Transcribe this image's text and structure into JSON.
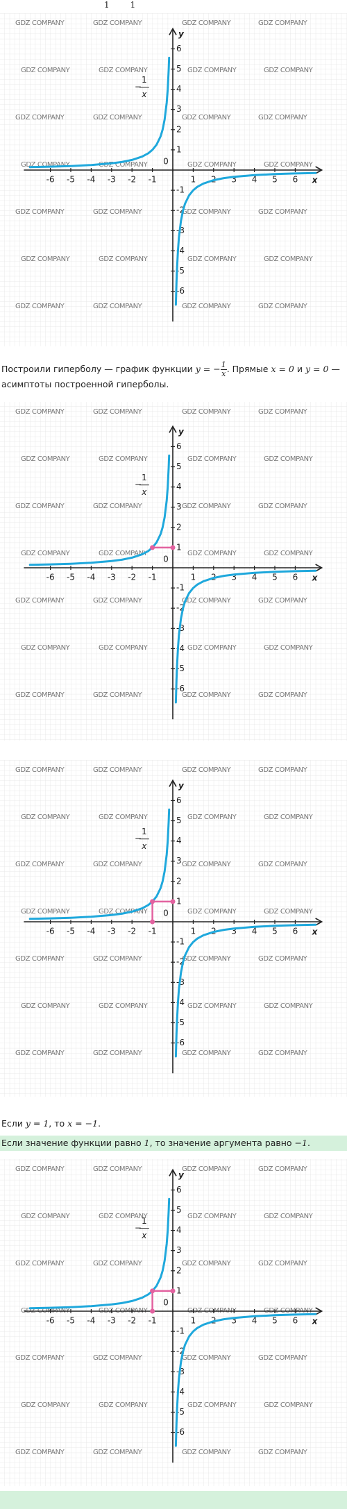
{
  "top_fragment": [
    "1",
    "1"
  ],
  "watermark": "GDZ COMPANY",
  "p1": {
    "before": "Построили гиперболу — график функции ",
    "lhs": "y = −",
    "num": "1",
    "den": "x",
    "middle": ". Прямые ",
    "eq1": "x = 0",
    "and": " и ",
    "eq2": "y = 0",
    "after": " — асимптоты построенной гиперболы."
  },
  "p2": {
    "before": "Если ",
    "eq1": "y = 1",
    "middle": ", то ",
    "eq2": "x = −1",
    "after": "."
  },
  "p3": {
    "before": "Если значение функции равно ",
    "eq1": "1",
    "middle": ", то значение аргумента равно ",
    "eq2": "−1",
    "after": "."
  },
  "chart_data": [
    {
      "type": "line",
      "xlabel": "x",
      "ylabel": "y",
      "color": "#1fa8dc",
      "annotation": {
        "sign": "−",
        "num": "1",
        "den": "x",
        "x": -1.4,
        "y": 4.1
      },
      "x": [
        -7,
        -6,
        -5,
        -4,
        -3,
        -2.5,
        -2,
        -1.5,
        -1.2,
        -1,
        -0.8,
        -0.6,
        -0.5,
        -0.4,
        -0.3,
        -0.25,
        -0.2,
        -0.18,
        null,
        0.15,
        0.18,
        0.2,
        0.25,
        0.3,
        0.4,
        0.5,
        0.6,
        0.8,
        1,
        1.2,
        1.5,
        2,
        2.5,
        3,
        4,
        5,
        6,
        7
      ],
      "values": [
        0.143,
        0.167,
        0.2,
        0.25,
        0.333,
        0.4,
        0.5,
        0.667,
        0.833,
        1,
        1.25,
        1.667,
        2,
        2.5,
        3.333,
        4,
        5,
        5.556,
        null,
        -6.667,
        -5.556,
        -5,
        -4,
        -3.333,
        -2.5,
        -2,
        -1.667,
        -1.25,
        -1,
        -0.833,
        -0.667,
        -0.5,
        -0.4,
        -0.333,
        -0.25,
        -0.2,
        -0.167,
        -0.143
      ],
      "xlim": [
        -7.3,
        7.3
      ],
      "ylim": [
        -7.5,
        7
      ],
      "xticks": [
        -6,
        -5,
        -4,
        -3,
        -2,
        -1,
        0,
        1,
        2,
        3,
        4,
        5,
        6
      ],
      "yticks": [
        -6,
        -5,
        -4,
        -3,
        -2,
        -1,
        1,
        2,
        3,
        4,
        5,
        6
      ]
    },
    {
      "type": "line",
      "xlabel": "x",
      "ylabel": "y",
      "color": "#1fa8dc",
      "annotation": {
        "sign": "−",
        "num": "1",
        "den": "x",
        "x": -1.4,
        "y": 4.1
      },
      "x": [
        -7,
        -6,
        -5,
        -4,
        -3,
        -2.5,
        -2,
        -1.5,
        -1.2,
        -1,
        -0.8,
        -0.6,
        -0.5,
        -0.4,
        -0.3,
        -0.25,
        -0.2,
        -0.18,
        null,
        0.15,
        0.18,
        0.2,
        0.25,
        0.3,
        0.4,
        0.5,
        0.6,
        0.8,
        1,
        1.2,
        1.5,
        2,
        2.5,
        3,
        4,
        5,
        6,
        7
      ],
      "values": [
        0.143,
        0.167,
        0.2,
        0.25,
        0.333,
        0.4,
        0.5,
        0.667,
        0.833,
        1,
        1.25,
        1.667,
        2,
        2.5,
        3.333,
        4,
        5,
        5.556,
        null,
        -6.667,
        -5.556,
        -5,
        -4,
        -3.333,
        -2.5,
        -2,
        -1.667,
        -1.25,
        -1,
        -0.833,
        -0.667,
        -0.5,
        -0.4,
        -0.333,
        -0.25,
        -0.2,
        -0.167,
        -0.143
      ],
      "xlim": [
        -7.3,
        7.3
      ],
      "ylim": [
        -7.5,
        7
      ],
      "xticks": [
        -6,
        -5,
        -4,
        -3,
        -2,
        -1,
        0,
        1,
        2,
        3,
        4,
        5,
        6
      ],
      "yticks": [
        -6,
        -5,
        -4,
        -3,
        -2,
        -1,
        1,
        2,
        3,
        4,
        5,
        6
      ],
      "highlight": {
        "x": -1,
        "y": 1,
        "lines": [
          "horizontal"
        ],
        "color": "#e2619f"
      }
    },
    {
      "type": "line",
      "xlabel": "x",
      "ylabel": "y",
      "color": "#1fa8dc",
      "annotation": {
        "sign": "−",
        "num": "1",
        "den": "x",
        "x": -1.4,
        "y": 4.1
      },
      "x": [
        -7,
        -6,
        -5,
        -4,
        -3,
        -2.5,
        -2,
        -1.5,
        -1.2,
        -1,
        -0.8,
        -0.6,
        -0.5,
        -0.4,
        -0.3,
        -0.25,
        -0.2,
        -0.18,
        null,
        0.15,
        0.18,
        0.2,
        0.25,
        0.3,
        0.4,
        0.5,
        0.6,
        0.8,
        1,
        1.2,
        1.5,
        2,
        2.5,
        3,
        4,
        5,
        6,
        7
      ],
      "values": [
        0.143,
        0.167,
        0.2,
        0.25,
        0.333,
        0.4,
        0.5,
        0.667,
        0.833,
        1,
        1.25,
        1.667,
        2,
        2.5,
        3.333,
        4,
        5,
        5.556,
        null,
        -6.667,
        -5.556,
        -5,
        -4,
        -3.333,
        -2.5,
        -2,
        -1.667,
        -1.25,
        -1,
        -0.833,
        -0.667,
        -0.5,
        -0.4,
        -0.333,
        -0.25,
        -0.2,
        -0.167,
        -0.143
      ],
      "xlim": [
        -7.3,
        7.3
      ],
      "ylim": [
        -7.5,
        7
      ],
      "xticks": [
        -6,
        -5,
        -4,
        -3,
        -2,
        -1,
        0,
        1,
        2,
        3,
        4,
        5,
        6
      ],
      "yticks": [
        -6,
        -5,
        -4,
        -3,
        -2,
        -1,
        1,
        2,
        3,
        4,
        5,
        6
      ],
      "highlight": {
        "x": -1,
        "y": 1,
        "lines": [
          "horizontal",
          "vertical"
        ],
        "color": "#e2619f"
      }
    },
    {
      "type": "line",
      "xlabel": "x",
      "ylabel": "y",
      "color": "#1fa8dc",
      "annotation": {
        "sign": "−",
        "num": "1",
        "den": "x",
        "x": -1.4,
        "y": 4.1
      },
      "x": [
        -7,
        -6,
        -5,
        -4,
        -3,
        -2.5,
        -2,
        -1.5,
        -1.2,
        -1,
        -0.8,
        -0.6,
        -0.5,
        -0.4,
        -0.3,
        -0.25,
        -0.2,
        -0.18,
        null,
        0.15,
        0.18,
        0.2,
        0.25,
        0.3,
        0.4,
        0.5,
        0.6,
        0.8,
        1,
        1.2,
        1.5,
        2,
        2.5,
        3,
        4,
        5,
        6,
        7
      ],
      "values": [
        0.143,
        0.167,
        0.2,
        0.25,
        0.333,
        0.4,
        0.5,
        0.667,
        0.833,
        1,
        1.25,
        1.667,
        2,
        2.5,
        3.333,
        4,
        5,
        5.556,
        null,
        -6.667,
        -5.556,
        -5,
        -4,
        -3.333,
        -2.5,
        -2,
        -1.667,
        -1.25,
        -1,
        -0.833,
        -0.667,
        -0.5,
        -0.4,
        -0.333,
        -0.25,
        -0.2,
        -0.167,
        -0.143
      ],
      "xlim": [
        -7.3,
        7.3
      ],
      "ylim": [
        -7.5,
        7
      ],
      "xticks": [
        -6,
        -5,
        -4,
        -3,
        -2,
        -1,
        0,
        1,
        2,
        3,
        4,
        5,
        6
      ],
      "yticks": [
        -6,
        -5,
        -4,
        -3,
        -2,
        -1,
        1,
        2,
        3,
        4,
        5,
        6
      ],
      "highlight": {
        "x": -1,
        "y": 1,
        "lines": [
          "horizontal",
          "vertical"
        ],
        "color": "#e2619f"
      }
    }
  ]
}
